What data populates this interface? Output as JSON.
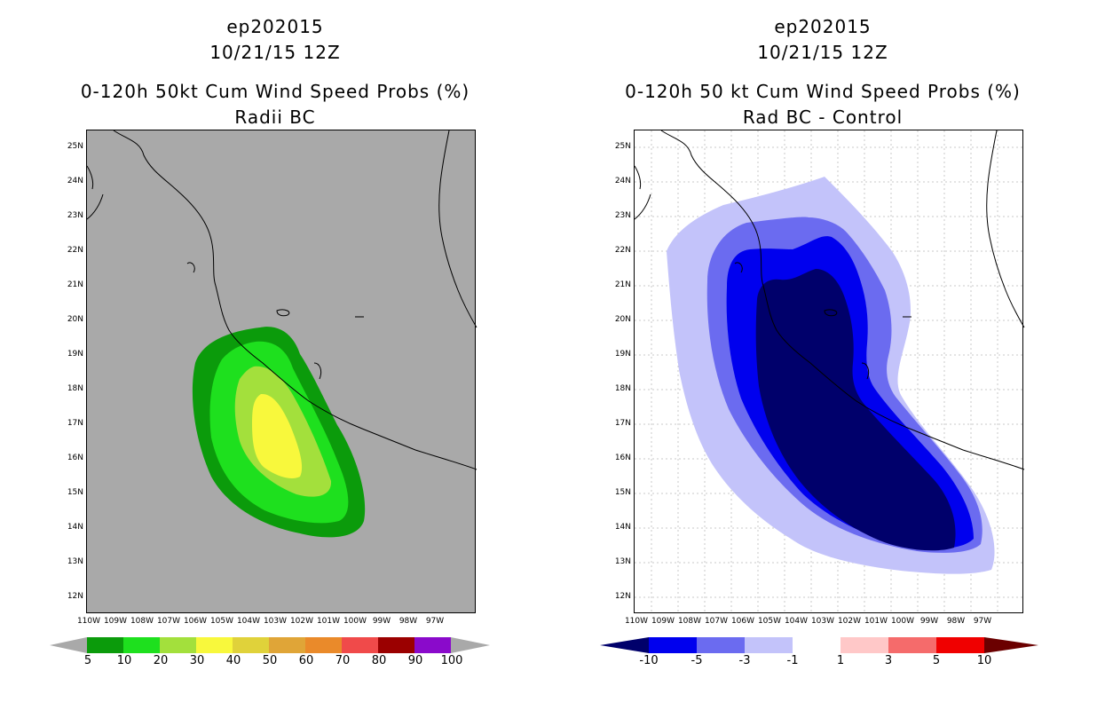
{
  "left_panel": {
    "storm_id": "ep202015",
    "datetime": "10/21/15 12Z",
    "title": "0-120h 50kt Cum Wind Speed Probs (%)",
    "subtitle": "Radii BC",
    "background_color": "#a9a9a9",
    "colorbar": {
      "labels": [
        "5",
        "10",
        "20",
        "30",
        "40",
        "50",
        "60",
        "70",
        "80",
        "90",
        "100"
      ],
      "colors": [
        "#0b9b0b",
        "#1ee01e",
        "#a3e03c",
        "#f8f83c",
        "#e0d23a",
        "#e0a537",
        "#ea8a2a",
        "#f04a4a",
        "#9b0000",
        "#8a0acb"
      ]
    }
  },
  "right_panel": {
    "storm_id": "ep202015",
    "datetime": "10/21/15 12Z",
    "title": "0-120h 50 kt Cum Wind Speed Probs (%)",
    "subtitle": "Rad BC - Control",
    "background_color": "#ffffff",
    "colorbar": {
      "labels": [
        "-10",
        "-5",
        "-3",
        "-1",
        "1",
        "3",
        "5",
        "10"
      ],
      "colors": [
        "#0000ee",
        "#6b6bf0",
        "#c3c3fa",
        "#ffffff",
        "#ffc8c8",
        "#f56b6b",
        "#f00000"
      ],
      "end_low_color": "#00006b",
      "end_high_color": "#6b0000"
    }
  },
  "axes": {
    "lat_labels": [
      "25N",
      "24N",
      "23N",
      "22N",
      "21N",
      "20N",
      "19N",
      "18N",
      "17N",
      "16N",
      "15N",
      "14N",
      "13N",
      "12N"
    ],
    "lon_labels": [
      "110W",
      "109W",
      "108W",
      "107W",
      "106W",
      "105W",
      "104W",
      "103W",
      "102W",
      "101W",
      "100W",
      "99W",
      "98W",
      "97W"
    ]
  }
}
